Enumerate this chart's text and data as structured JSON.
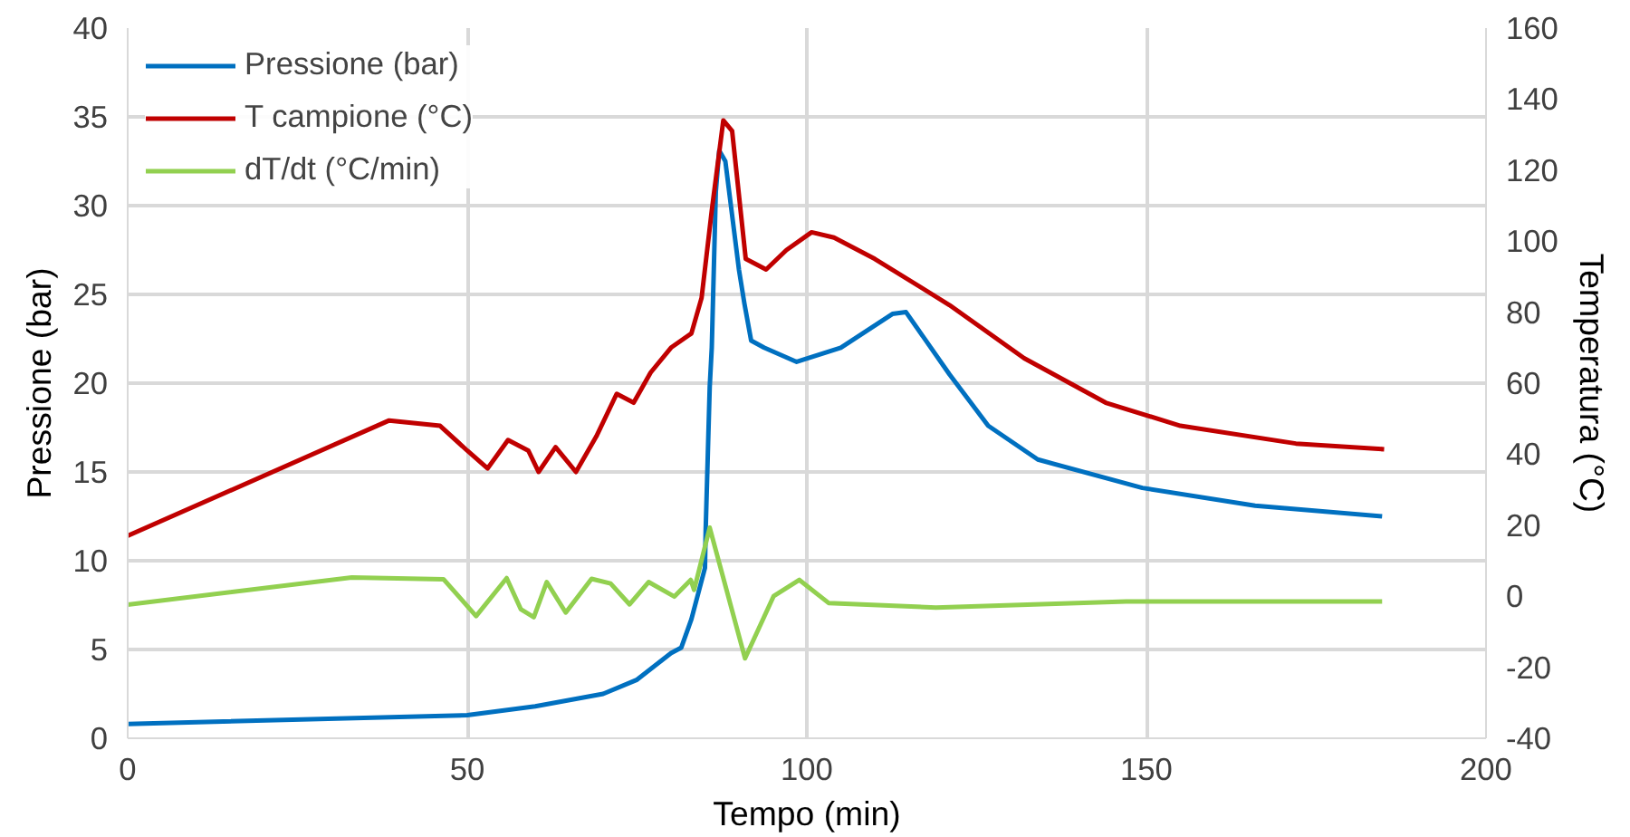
{
  "chart_data": {
    "type": "line",
    "xlabel": "Tempo (min)",
    "ylabel": "Pressione (bar)",
    "y2label": "Temperatura (°C)",
    "xlim": [
      0,
      200
    ],
    "xticks": [
      0,
      50,
      100,
      150,
      200
    ],
    "ylim": [
      0,
      40
    ],
    "yticks": [
      0,
      5,
      10,
      15,
      20,
      25,
      30,
      35,
      40
    ],
    "y2lim": [
      -40,
      160
    ],
    "y2ticks": [
      -40,
      -20,
      0,
      20,
      40,
      60,
      80,
      100,
      120,
      140,
      160
    ],
    "grid": true,
    "legend": "top left",
    "line_style": "solid",
    "marker": "none",
    "series": [
      {
        "name": "Pressione (bar)",
        "color": "#0070c0",
        "x": [
          0,
          50,
          60,
          70,
          75,
          80,
          81.5,
          83,
          85,
          85.1,
          85.7,
          86,
          86.6,
          87.1,
          88,
          90,
          90.8,
          91.8,
          93.7,
          98.5,
          105,
          112.6,
          114.6,
          121,
          126.7,
          134,
          149.4,
          166,
          184.7
        ],
        "values": [
          0.8,
          1.3,
          1.8,
          2.5,
          3.3,
          4.8,
          5.1,
          6.7,
          9.6,
          11.7,
          19.8,
          22,
          30.8,
          33.1,
          32.5,
          26.4,
          24.5,
          22.4,
          22,
          21.2,
          22,
          23.9,
          24,
          20.5,
          17.6,
          15.7,
          14.1,
          13.1,
          12.5
        ]
      },
      {
        "name": "T campione (°C)",
        "color": "#c00000",
        "axis": "y2",
        "x": [
          0,
          38.5,
          46,
          50,
          53,
          56,
          59,
          60.5,
          63,
          66,
          69,
          72,
          74.5,
          77,
          80,
          83,
          84.5,
          86,
          87.7,
          89,
          91,
          94,
          97,
          100.7,
          104,
          110,
          121,
          132,
          144,
          155,
          172,
          185
        ],
        "values": [
          17,
          49.5,
          48,
          41,
          36,
          44,
          41,
          35,
          42,
          35,
          45,
          57,
          54.5,
          63,
          70,
          74,
          84,
          108.6,
          134,
          131,
          95,
          92,
          97.5,
          102.5,
          101,
          95,
          82,
          67,
          54.5,
          48,
          43,
          41.4
        ]
      },
      {
        "name": "dT/dt (°C/min)",
        "color": "#92d050",
        "axis": "y2",
        "x": [
          0,
          33,
          46.5,
          51.3,
          55.8,
          57.9,
          59.8,
          61.7,
          64.5,
          68.3,
          71.1,
          73.9,
          76.7,
          80.5,
          82.9,
          83.4,
          85.7,
          90.9,
          95.1,
          98.9,
          103.2,
          119,
          147,
          184.7
        ],
        "values": [
          -2.4,
          5.3,
          4.8,
          -5.6,
          5.1,
          -3.7,
          -5.9,
          4,
          -4.6,
          4.9,
          3.6,
          -2.3,
          4,
          -0.1,
          4.6,
          1.8,
          19.3,
          -17.5,
          0,
          4.6,
          -1.9,
          -3.2,
          -1.5,
          -1.5
        ]
      }
    ]
  }
}
